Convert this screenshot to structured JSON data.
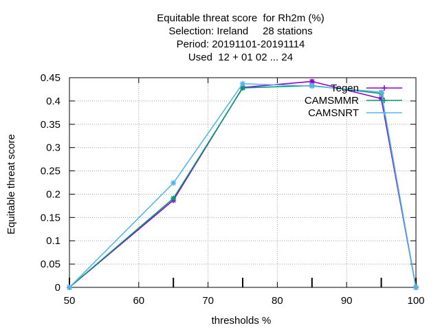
{
  "chart_data": {
    "type": "line",
    "title_lines": [
      "Equitable threat score  for Rh2m (%)",
      "Selection: Ireland     28 stations",
      "Period: 20191101-20191114",
      "Used  12 + 01 02 ... 24"
    ],
    "xlabel": "thresholds %",
    "ylabel": "Equitable threat score",
    "xlim": [
      50,
      100
    ],
    "ylim": [
      0,
      0.45
    ],
    "xticks": [
      "50",
      "60",
      "70",
      "80",
      "90",
      "100"
    ],
    "yticks": [
      "0",
      "0.05",
      "0.1",
      "0.15",
      "0.2",
      "0.25",
      "0.3",
      "0.35",
      "0.4",
      "0.45"
    ],
    "grid": true,
    "legend_position": "top-right",
    "x": [
      50,
      65,
      75,
      85,
      95,
      100
    ],
    "series": [
      {
        "name": "Tegen",
        "color": "#9400d3",
        "values": [
          0,
          0.187,
          0.429,
          0.442,
          0.405,
          0
        ]
      },
      {
        "name": "CAMSMMR",
        "color": "#009e73",
        "values": [
          0,
          0.191,
          0.428,
          0.433,
          0.416,
          0
        ]
      },
      {
        "name": "CAMSNRT",
        "color": "#56b4e9",
        "values": [
          0,
          0.224,
          0.437,
          0.432,
          0.419,
          0
        ]
      }
    ]
  }
}
